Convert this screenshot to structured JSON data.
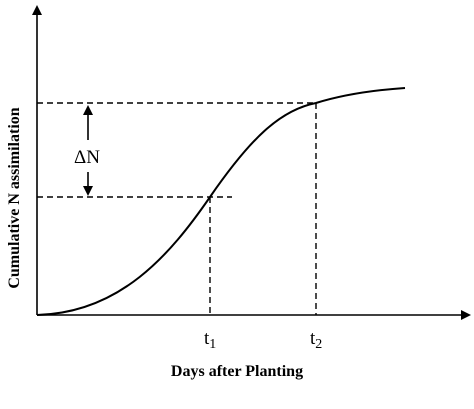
{
  "diagram": {
    "y_axis_label": "Cumulative N assimilation",
    "x_axis_label": "Days after Planting",
    "delta_label": "ΔN",
    "marks": [
      {
        "base": "t",
        "sub": "1"
      },
      {
        "base": "t",
        "sub": "2"
      }
    ]
  }
}
